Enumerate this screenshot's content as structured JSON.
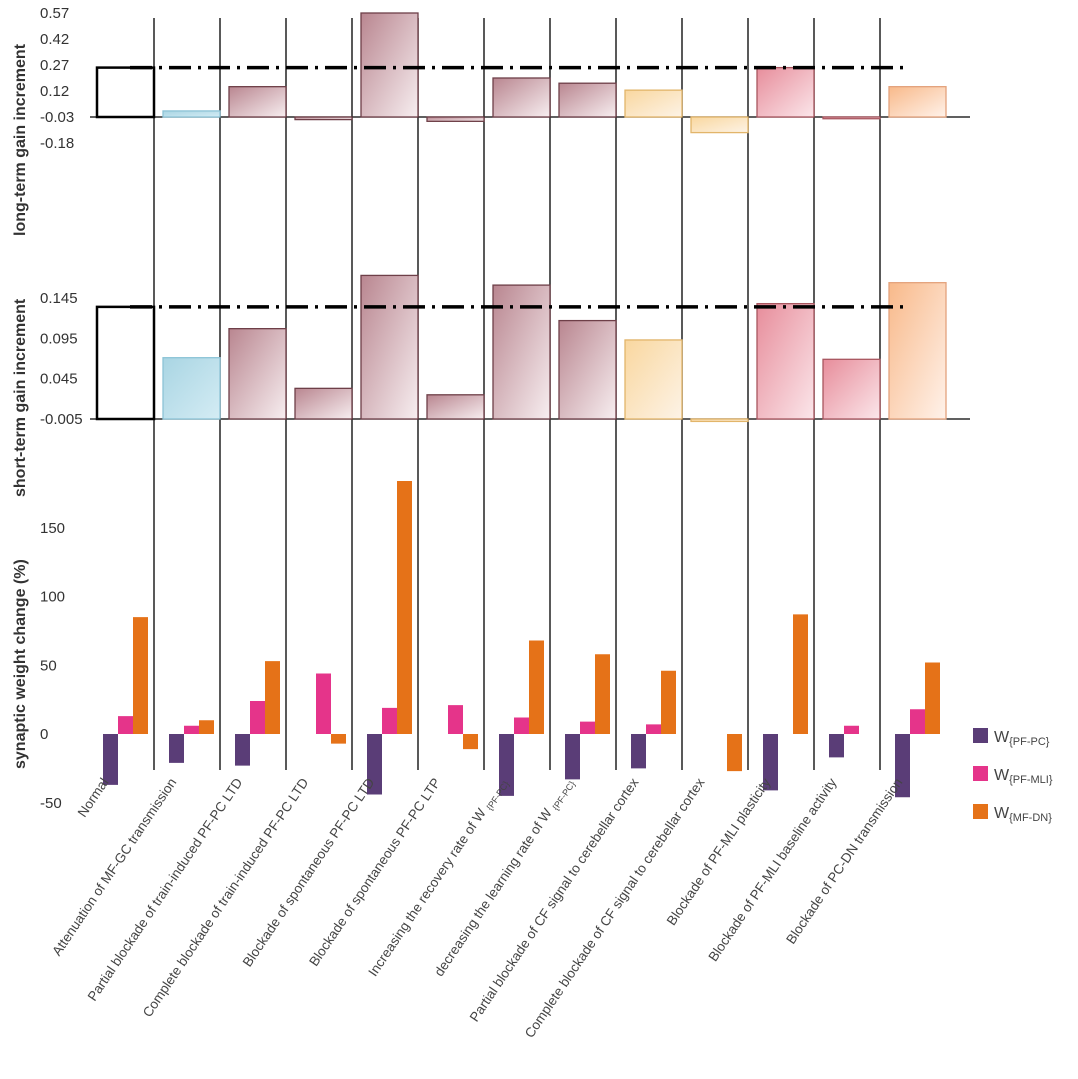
{
  "chart_data": [
    {
      "type": "bar",
      "panel": "long-term",
      "ylabel": "long-term gain increment",
      "yticks": [
        "0.57",
        "0.42",
        "0.27",
        "0.12",
        "-0.03",
        "-0.18"
      ],
      "ylim": [
        -0.21,
        0.6
      ],
      "baseline": -0.03,
      "reference": 0.255,
      "categories": [
        "Normal",
        "Attenuation of MF-GC transmission",
        "Partial blockade of train-induced PF-PC LTD",
        "Complete blockade of train-induced PF-PC LTD",
        "Blockade of spontaneous PF-PC LTD",
        "Blockade of spontaneous PF-PC LTP",
        "Increasing the recovery rate of W {PF-PC}",
        "decreasing the learning rate of W {PF-PC}",
        "Partial blockade of CF signal to cerebellar cortex",
        "Complete blockade of CF signal to cerebellar cortex",
        "Blockade of PF-MLI plasticity",
        "Blockade of PF-MLI baseline activity",
        "Blockade of PC-DN transmission"
      ],
      "values": [
        0.255,
        0.005,
        0.145,
        -0.045,
        0.57,
        -0.055,
        0.195,
        0.165,
        0.125,
        -0.12,
        0.255,
        -0.04,
        0.145
      ]
    },
    {
      "type": "bar",
      "panel": "short-term",
      "ylabel": "short-term gain increment",
      "yticks": [
        "0.145",
        "0.095",
        "0.045",
        "-0.005"
      ],
      "ylim": [
        -0.008,
        0.18
      ],
      "baseline": -0.005,
      "reference": 0.134,
      "categories": [
        "Normal",
        "Attenuation of MF-GC transmission",
        "Partial blockade of train-induced PF-PC LTD",
        "Complete blockade of train-induced PF-PC LTD",
        "Blockade of spontaneous PF-PC LTD",
        "Blockade of spontaneous PF-PC LTP",
        "Increasing the recovery rate of W {PF-PC}",
        "decreasing the learning rate of W {PF-PC}",
        "Partial blockade of CF signal to cerebellar cortex",
        "Complete blockade of CF signal to cerebellar cortex",
        "Blockade of PF-MLI plasticity",
        "Blockade of PF-MLI baseline activity",
        "Blockade of PC-DN transmission"
      ],
      "values": [
        0.134,
        0.071,
        0.107,
        0.033,
        0.173,
        0.025,
        0.161,
        0.117,
        0.093,
        -0.008,
        0.138,
        0.069,
        0.164
      ]
    },
    {
      "type": "bar",
      "panel": "synaptic",
      "ylabel": "synaptic weight change (%)",
      "yticks": [
        "150",
        "100",
        "50",
        "0",
        "-50"
      ],
      "ylim": [
        -55,
        200
      ],
      "categories": [
        "Normal",
        "Attenuation of MF-GC transmission",
        "Partial blockade of train-induced PF-PC LTD",
        "Complete blockade of train-induced PF-PC LTD",
        "Blockade of spontaneous PF-PC LTD",
        "Blockade of spontaneous PF-PC LTP",
        "Increasing the recovery rate of W {PF-PC}",
        "decreasing the learning rate of W {PF-PC}",
        "Partial blockade of CF signal to cerebellar cortex",
        "Complete blockade of CF signal to cerebellar cortex",
        "Blockade of PF-MLI plasticity",
        "Blockade of PF-MLI baseline activity",
        "Blockade of PC-DN transmission"
      ],
      "series": [
        {
          "name": "W",
          "sub": "{PF-PC}",
          "color": "#5a3d77",
          "values": [
            -37,
            -21,
            -23,
            0,
            -44,
            0,
            -45,
            -33,
            -25,
            0,
            -41,
            -17,
            -46
          ]
        },
        {
          "name": "W",
          "sub": "{PF-MLI}",
          "color": "#e5348a",
          "values": [
            13,
            6,
            24,
            44,
            19,
            21,
            12,
            9,
            7,
            0,
            0,
            6,
            18
          ]
        },
        {
          "name": "W",
          "sub": "{MF-DN}",
          "color": "#e57218",
          "values": [
            85,
            10,
            53,
            -7,
            184,
            -11,
            68,
            58,
            46,
            -27,
            87,
            0,
            52
          ]
        }
      ]
    }
  ],
  "labels": {
    "cat0": "Normal",
    "cat1": "Attenuation of MF-GC transmission",
    "cat2": "Partial blockade of train-induced PF-PC LTD",
    "cat3": "Complete blockade of train-induced PF-PC LTD",
    "cat4": "Blockade of spontaneous PF-PC LTD",
    "cat5": "Blockade of spontaneous PF-PC LTP",
    "cat6_main": "Increasing the recovery rate of W ",
    "cat6_sub": "{PF-PC}",
    "cat7_main": "decreasing the learning rate of W ",
    "cat7_sub": "{PF-PC}",
    "cat8": "Partial blockade of CF signal to cerebellar cortex",
    "cat9": "Complete blockade of CF signal to cerebellar cortex",
    "cat10": "Blockade of PF-MLI plasticity",
    "cat11": "Blockade of PF-MLI baseline activity",
    "cat12": "Blockade of PC-DN transmission"
  },
  "colors": {
    "normal_outline": "#000000",
    "light_blue": "#b7dde8",
    "mauve_dark": "#c8a0a8",
    "peach": "#f6d29e",
    "pink": "#ea9aa8",
    "orange_light": "#f9c7a0"
  }
}
